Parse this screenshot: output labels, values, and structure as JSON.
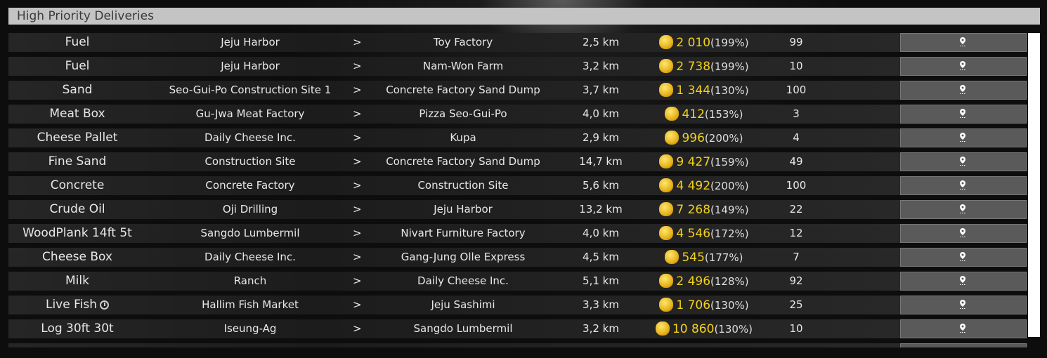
{
  "header": {
    "title": "High Priority Deliveries"
  },
  "colors": {
    "reward": "#f2d21b",
    "header_bg": "#c4c4c4"
  },
  "icons": {
    "reward": "gold-coins-icon",
    "action": "map-pin-icon",
    "special": "timer-icon"
  },
  "rows": [
    {
      "cargo": "Fuel",
      "from": "Jeju Harbor",
      "arrow": ">",
      "to": "Toy Factory",
      "distance": "2,5 km",
      "reward": "2 010",
      "percent": "(199%)",
      "count": "99"
    },
    {
      "cargo": "Fuel",
      "from": "Jeju Harbor",
      "arrow": ">",
      "to": "Nam-Won Farm",
      "distance": "3,2 km",
      "reward": "2 738",
      "percent": "(199%)",
      "count": "10"
    },
    {
      "cargo": "Sand",
      "from": "Seo-Gui-Po Construction Site 1",
      "arrow": ">",
      "to": "Concrete Factory Sand Dump",
      "distance": "3,7 km",
      "reward": "1 344",
      "percent": "(130%)",
      "count": "100"
    },
    {
      "cargo": "Meat Box",
      "from": "Gu-Jwa Meat Factory",
      "arrow": ">",
      "to": "Pizza Seo-Gui-Po",
      "distance": "4,0 km",
      "reward": "412",
      "percent": "(153%)",
      "count": "3"
    },
    {
      "cargo": "Cheese Pallet",
      "from": "Daily Cheese Inc.",
      "arrow": ">",
      "to": "Kupa",
      "distance": "2,9 km",
      "reward": "996",
      "percent": "(200%)",
      "count": "4"
    },
    {
      "cargo": "Fine Sand",
      "from": "Construction Site",
      "arrow": ">",
      "to": "Concrete Factory Sand Dump",
      "distance": "14,7 km",
      "reward": "9 427",
      "percent": "(159%)",
      "count": "49"
    },
    {
      "cargo": "Concrete",
      "from": "Concrete Factory",
      "arrow": ">",
      "to": "Construction Site",
      "distance": "5,6 km",
      "reward": "4 492",
      "percent": "(200%)",
      "count": "100"
    },
    {
      "cargo": "Crude Oil",
      "from": "Oji Drilling",
      "arrow": ">",
      "to": "Jeju Harbor",
      "distance": "13,2 km",
      "reward": "7 268",
      "percent": "(149%)",
      "count": "22"
    },
    {
      "cargo": "WoodPlank 14ft 5t",
      "from": "Sangdo Lumbermil",
      "arrow": ">",
      "to": "Nivart Furniture Factory",
      "distance": "4,0 km",
      "reward": "4 546",
      "percent": "(172%)",
      "count": "12"
    },
    {
      "cargo": "Cheese Box",
      "from": "Daily Cheese Inc.",
      "arrow": ">",
      "to": "Gang-Jung Olle Express",
      "distance": "4,5 km",
      "reward": "545",
      "percent": "(177%)",
      "count": "7"
    },
    {
      "cargo": "Milk",
      "from": "Ranch",
      "arrow": ">",
      "to": "Daily Cheese Inc.",
      "distance": "5,1 km",
      "reward": "2 496",
      "percent": "(128%)",
      "count": "92"
    },
    {
      "cargo": "Live Fish",
      "from": "Hallim Fish Market",
      "arrow": ">",
      "to": "Jeju Sashimi",
      "distance": "3,3 km",
      "reward": "1 706",
      "percent": "(130%)",
      "count": "25",
      "timed": true
    },
    {
      "cargo": "Log 30ft 30t",
      "from": "Iseung-Ag",
      "arrow": ">",
      "to": "Sangdo Lumbermil",
      "distance": "3,2 km",
      "reward": "10 860",
      "percent": "(130%)",
      "count": "10"
    }
  ]
}
